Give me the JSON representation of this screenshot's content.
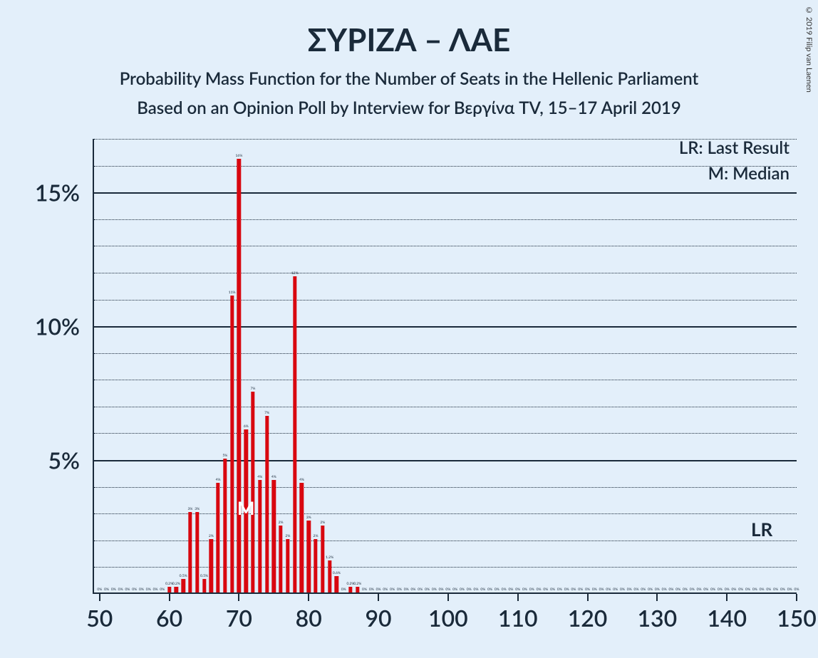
{
  "copyright": "© 2019 Filip van Laenen",
  "title": "ΣΥΡΙΖΑ – ΛΑΕ",
  "subtitle": "Probability Mass Function for the Number of Seats in the Hellenic Parliament",
  "subtitle2": "Based on an Opinion Poll by Interview for Βεργίνα TV, 15–17 April 2019",
  "legend": {
    "lr": "LR: Last Result",
    "m": "M: Median"
  },
  "marker_m": "M",
  "marker_lr": "LR",
  "chart": {
    "type": "bar",
    "background_color": "#e3effa",
    "bar_color": "#d8070f",
    "axis_color": "#1a2a3a",
    "grid_major_color": "#1a2a3a",
    "grid_minor_color": "#1a2a3a",
    "text_color": "#1a2a3a",
    "title_fontsize": 44,
    "subtitle_fontsize": 24,
    "axis_label_fontsize": 32,
    "bar_width_ratio": 0.55,
    "xlim": [
      49,
      150
    ],
    "ylim": [
      0,
      17
    ],
    "y_major_ticks": [
      5,
      10,
      15
    ],
    "y_minor_step": 1,
    "x_major_ticks": [
      50,
      60,
      70,
      80,
      90,
      100,
      110,
      120,
      130,
      140,
      150
    ],
    "median_x": 71,
    "lr_x": 145,
    "data": [
      {
        "x": 50,
        "y": 0,
        "lbl": "0%"
      },
      {
        "x": 51,
        "y": 0,
        "lbl": "0%"
      },
      {
        "x": 52,
        "y": 0,
        "lbl": "0%"
      },
      {
        "x": 53,
        "y": 0,
        "lbl": "0%"
      },
      {
        "x": 54,
        "y": 0,
        "lbl": "0%"
      },
      {
        "x": 55,
        "y": 0,
        "lbl": "0%"
      },
      {
        "x": 56,
        "y": 0,
        "lbl": "0%"
      },
      {
        "x": 57,
        "y": 0,
        "lbl": "0%"
      },
      {
        "x": 58,
        "y": 0,
        "lbl": "0%"
      },
      {
        "x": 59,
        "y": 0,
        "lbl": "0%"
      },
      {
        "x": 60,
        "y": 0.2,
        "lbl": "0.2%"
      },
      {
        "x": 61,
        "y": 0.2,
        "lbl": "0.2%"
      },
      {
        "x": 62,
        "y": 0.5,
        "lbl": "0.5%"
      },
      {
        "x": 63,
        "y": 3.0,
        "lbl": "3%"
      },
      {
        "x": 64,
        "y": 3.0,
        "lbl": "3%"
      },
      {
        "x": 65,
        "y": 0.5,
        "lbl": "0.5%"
      },
      {
        "x": 66,
        "y": 2.0,
        "lbl": "2%"
      },
      {
        "x": 67,
        "y": 4.1,
        "lbl": "4%"
      },
      {
        "x": 68,
        "y": 5.0,
        "lbl": "5%"
      },
      {
        "x": 69,
        "y": 11.1,
        "lbl": "11%"
      },
      {
        "x": 70,
        "y": 16.2,
        "lbl": "16%"
      },
      {
        "x": 71,
        "y": 6.1,
        "lbl": "6%"
      },
      {
        "x": 72,
        "y": 7.5,
        "lbl": "7%"
      },
      {
        "x": 73,
        "y": 4.2,
        "lbl": "4%"
      },
      {
        "x": 74,
        "y": 6.6,
        "lbl": "7%"
      },
      {
        "x": 75,
        "y": 4.2,
        "lbl": "4%"
      },
      {
        "x": 76,
        "y": 2.5,
        "lbl": "2%"
      },
      {
        "x": 77,
        "y": 2.0,
        "lbl": "2%"
      },
      {
        "x": 78,
        "y": 11.8,
        "lbl": "12%"
      },
      {
        "x": 79,
        "y": 4.1,
        "lbl": "4%"
      },
      {
        "x": 80,
        "y": 2.7,
        "lbl": "3%"
      },
      {
        "x": 81,
        "y": 2.0,
        "lbl": "2%"
      },
      {
        "x": 82,
        "y": 2.5,
        "lbl": "2%"
      },
      {
        "x": 83,
        "y": 1.2,
        "lbl": "1.2%"
      },
      {
        "x": 84,
        "y": 0.6,
        "lbl": "0.6%"
      },
      {
        "x": 85,
        "y": 0.0,
        "lbl": "0%"
      },
      {
        "x": 86,
        "y": 0.2,
        "lbl": "0.2%"
      },
      {
        "x": 87,
        "y": 0.2,
        "lbl": "0.2%"
      },
      {
        "x": 88,
        "y": 0,
        "lbl": "0%"
      },
      {
        "x": 89,
        "y": 0,
        "lbl": "0%"
      },
      {
        "x": 90,
        "y": 0,
        "lbl": "0%"
      },
      {
        "x": 91,
        "y": 0,
        "lbl": "0%"
      },
      {
        "x": 92,
        "y": 0,
        "lbl": "0%"
      },
      {
        "x": 93,
        "y": 0,
        "lbl": "0%"
      },
      {
        "x": 94,
        "y": 0,
        "lbl": "0%"
      },
      {
        "x": 95,
        "y": 0,
        "lbl": "0%"
      },
      {
        "x": 96,
        "y": 0,
        "lbl": "0%"
      },
      {
        "x": 97,
        "y": 0,
        "lbl": "0%"
      },
      {
        "x": 98,
        "y": 0,
        "lbl": "0%"
      },
      {
        "x": 99,
        "y": 0,
        "lbl": "0%"
      },
      {
        "x": 100,
        "y": 0,
        "lbl": "0%"
      },
      {
        "x": 101,
        "y": 0,
        "lbl": "0%"
      },
      {
        "x": 102,
        "y": 0,
        "lbl": "0%"
      },
      {
        "x": 103,
        "y": 0,
        "lbl": "0%"
      },
      {
        "x": 104,
        "y": 0,
        "lbl": "0%"
      },
      {
        "x": 105,
        "y": 0,
        "lbl": "0%"
      },
      {
        "x": 106,
        "y": 0,
        "lbl": "0%"
      },
      {
        "x": 107,
        "y": 0,
        "lbl": "0%"
      },
      {
        "x": 108,
        "y": 0,
        "lbl": "0%"
      },
      {
        "x": 109,
        "y": 0,
        "lbl": "0%"
      },
      {
        "x": 110,
        "y": 0,
        "lbl": "0%"
      },
      {
        "x": 111,
        "y": 0,
        "lbl": "0%"
      },
      {
        "x": 112,
        "y": 0,
        "lbl": "0%"
      },
      {
        "x": 113,
        "y": 0,
        "lbl": "0%"
      },
      {
        "x": 114,
        "y": 0,
        "lbl": "0%"
      },
      {
        "x": 115,
        "y": 0,
        "lbl": "0%"
      },
      {
        "x": 116,
        "y": 0,
        "lbl": "0%"
      },
      {
        "x": 117,
        "y": 0,
        "lbl": "0%"
      },
      {
        "x": 118,
        "y": 0,
        "lbl": "0%"
      },
      {
        "x": 119,
        "y": 0,
        "lbl": "0%"
      },
      {
        "x": 120,
        "y": 0,
        "lbl": "0%"
      },
      {
        "x": 121,
        "y": 0,
        "lbl": "0%"
      },
      {
        "x": 122,
        "y": 0,
        "lbl": "0%"
      },
      {
        "x": 123,
        "y": 0,
        "lbl": "0%"
      },
      {
        "x": 124,
        "y": 0,
        "lbl": "0%"
      },
      {
        "x": 125,
        "y": 0,
        "lbl": "0%"
      },
      {
        "x": 126,
        "y": 0,
        "lbl": "0%"
      },
      {
        "x": 127,
        "y": 0,
        "lbl": "0%"
      },
      {
        "x": 128,
        "y": 0,
        "lbl": "0%"
      },
      {
        "x": 129,
        "y": 0,
        "lbl": "0%"
      },
      {
        "x": 130,
        "y": 0,
        "lbl": "0%"
      },
      {
        "x": 131,
        "y": 0,
        "lbl": "0%"
      },
      {
        "x": 132,
        "y": 0,
        "lbl": "0%"
      },
      {
        "x": 133,
        "y": 0,
        "lbl": "0%"
      },
      {
        "x": 134,
        "y": 0,
        "lbl": "0%"
      },
      {
        "x": 135,
        "y": 0,
        "lbl": "0%"
      },
      {
        "x": 136,
        "y": 0,
        "lbl": "0%"
      },
      {
        "x": 137,
        "y": 0,
        "lbl": "0%"
      },
      {
        "x": 138,
        "y": 0,
        "lbl": "0%"
      },
      {
        "x": 139,
        "y": 0,
        "lbl": "0%"
      },
      {
        "x": 140,
        "y": 0,
        "lbl": "0%"
      },
      {
        "x": 141,
        "y": 0,
        "lbl": "0%"
      },
      {
        "x": 142,
        "y": 0,
        "lbl": "0%"
      },
      {
        "x": 143,
        "y": 0,
        "lbl": "0%"
      },
      {
        "x": 144,
        "y": 0,
        "lbl": "0%"
      },
      {
        "x": 145,
        "y": 0,
        "lbl": "0%"
      },
      {
        "x": 146,
        "y": 0,
        "lbl": "0%"
      },
      {
        "x": 147,
        "y": 0,
        "lbl": "0%"
      },
      {
        "x": 148,
        "y": 0,
        "lbl": "0%"
      },
      {
        "x": 149,
        "y": 0,
        "lbl": "0%"
      },
      {
        "x": 150,
        "y": 0,
        "lbl": "0%"
      }
    ]
  }
}
